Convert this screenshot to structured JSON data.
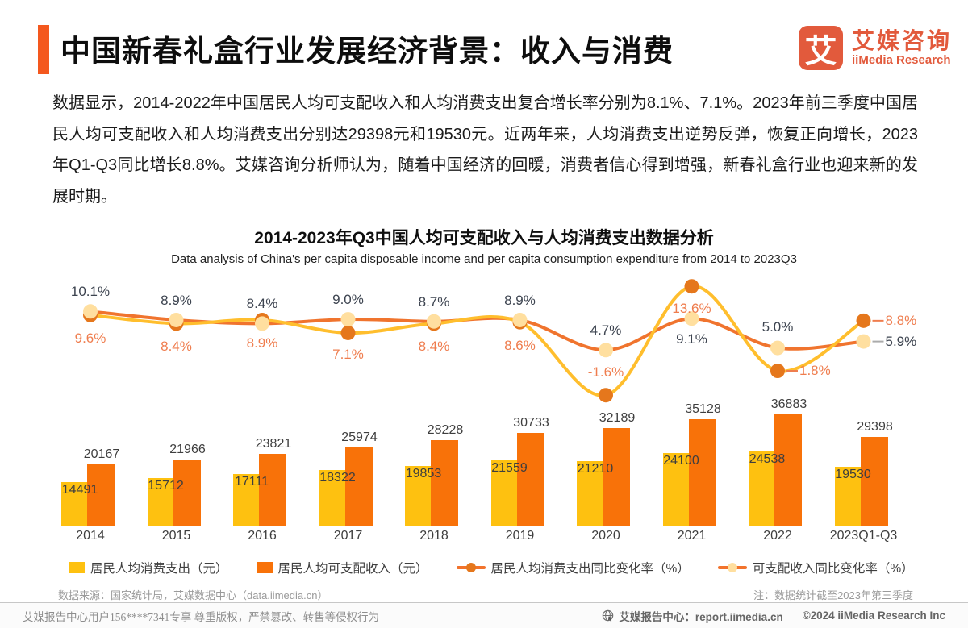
{
  "header": {
    "title": "中国新春礼盒行业发展经济背景：收入与消费",
    "logo": {
      "symbol": "艾",
      "name_cn": "艾媒咨询",
      "name_en": "iiMedia Research",
      "color": "#E25A3C"
    }
  },
  "intro": {
    "text": "数据显示，2014-2022年中国居民人均可支配收入和人均消费支出复合增长率分别为8.1%、7.1%。2023年前三季度中国居民人均可支配收入和人均消费支出分别达29398元和19530元。近两年来，人均消费支出逆势反弹，恢复正向增长，2023年Q1-Q3同比增长8.8%。艾媒咨询分析师认为，随着中国经济的回暖，消费者信心得到增强，新春礼盒行业也迎来新的发展时期。"
  },
  "chart_data": {
    "type": "bar",
    "title": "2014-2023年Q3中国人均可支配收入与人均消费支出数据分析",
    "subtitle": "Data analysis of China's per capita disposable income and per capita consumption expenditure from 2014 to 2023Q3",
    "categories": [
      "2014",
      "2015",
      "2016",
      "2017",
      "2018",
      "2019",
      "2020",
      "2021",
      "2022",
      "2023Q1-Q3"
    ],
    "grid": false,
    "legend_position": "bottom",
    "series": [
      {
        "name": "居民人均消费支出（元）",
        "type": "bar",
        "color": "#FEC110",
        "values": [
          14491,
          15712,
          17111,
          18322,
          19853,
          21559,
          21210,
          24100,
          24538,
          19530
        ]
      },
      {
        "name": "居民人均可支配收入（元）",
        "type": "bar",
        "color": "#F87209",
        "values": [
          20167,
          21966,
          23821,
          25974,
          28228,
          30733,
          32189,
          35128,
          36883,
          29398
        ]
      },
      {
        "name": "居民人均消费支出同比变化率（%）",
        "type": "line",
        "color": "#FFBE2D",
        "dot_color": "#E5771C",
        "label_color": "#EF7D4E",
        "leader_color": "#EF7D4E",
        "values": [
          9.6,
          8.4,
          8.9,
          7.1,
          8.4,
          8.6,
          -1.6,
          13.6,
          1.8,
          8.8
        ],
        "label_dy": [
          29,
          29,
          29,
          27,
          29,
          29,
          -28,
          28,
          0,
          0
        ],
        "label_right": [
          false,
          false,
          false,
          false,
          false,
          false,
          false,
          false,
          true,
          true
        ]
      },
      {
        "name": "可支配收入同比变化率（%）",
        "type": "line",
        "color": "#F0742E",
        "dot_color": "#FFDF9F",
        "label_color": "#3D4450",
        "leader_color": "#ABABAB",
        "values": [
          10.1,
          8.9,
          8.4,
          9.0,
          8.7,
          8.9,
          4.7,
          9.1,
          5.0,
          5.9
        ],
        "label_dy": [
          -24,
          -24,
          -24,
          -24,
          -24,
          -24,
          -24,
          26,
          -26,
          0
        ],
        "label_right": [
          false,
          false,
          false,
          false,
          false,
          false,
          false,
          false,
          false,
          true
        ]
      }
    ]
  },
  "source": {
    "left": "数据来源：国家统计局，艾媒数据中心（data.iimedia.cn）",
    "right": "注：数据统计截至2023年第三季度"
  },
  "footer": {
    "left": "艾媒报告中心用户156****7341专享 尊重版权，严禁篡改、转售等侵权行为",
    "site": "艾媒报告中心：report.iimedia.cn",
    "copyright": "©2024 iiMedia Research Inc"
  }
}
